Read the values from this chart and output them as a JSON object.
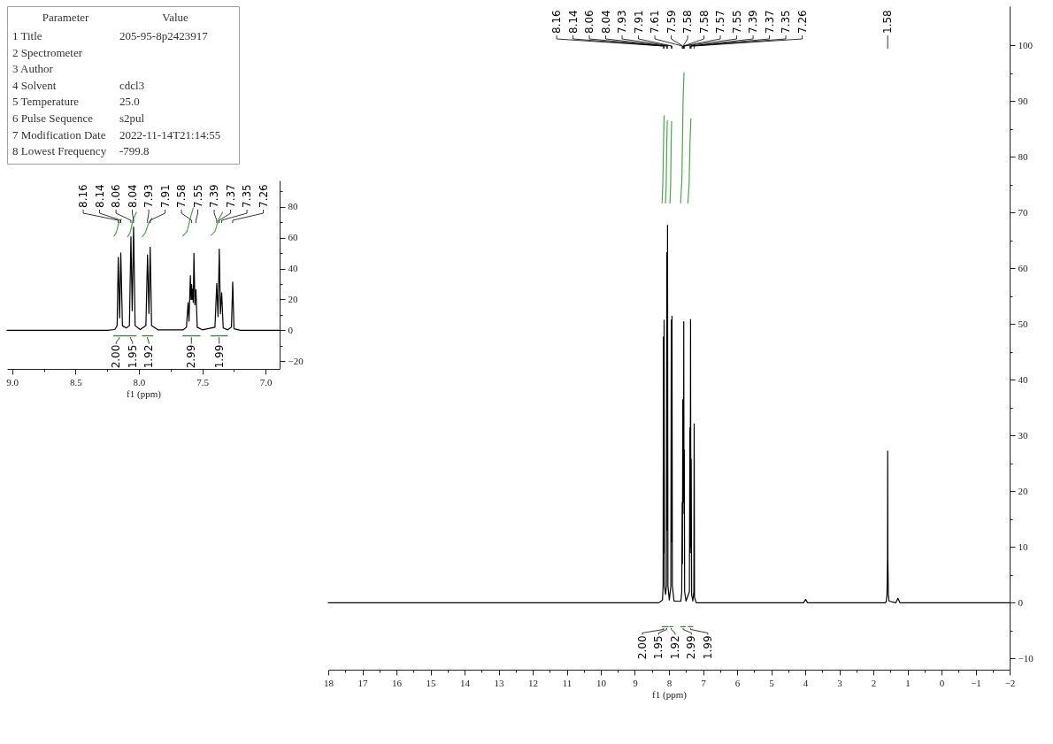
{
  "chart_data": [
    {
      "type": "other",
      "categories": [
        "Parameter",
        "1 Title",
        "2 Spectrometer",
        "3 Author",
        "4 Solvent",
        "5 Temperature",
        "6 Pulse Sequence",
        "7 Modification Date",
        "8 Lowest Frequency"
      ],
      "value_labels": [
        "Value",
        "205-95-8p2423917",
        null,
        null,
        "cdcl3",
        "25.0",
        "s2pul",
        "2022-11-14T21:14:55",
        "-799.8"
      ]
    },
    {
      "type": "line",
      "xlabel": "f1 (ppm)",
      "xlim": [
        9.04,
        6.89
      ],
      "xticks": [
        {
          "value": 9.0,
          "label": "9.0"
        },
        {
          "value": 8.75,
          "label": null
        },
        {
          "value": 8.5,
          "label": "8.5"
        },
        {
          "value": 8.25,
          "label": null
        },
        {
          "value": 8.0,
          "label": "8.0"
        },
        {
          "value": 7.75,
          "label": null
        },
        {
          "value": 7.5,
          "label": "7.5"
        },
        {
          "value": 7.25,
          "label": null
        },
        {
          "value": 7.0,
          "label": "7.0"
        }
      ],
      "ylim": [
        -25,
        97
      ],
      "yticks": [
        -20,
        {
          "value": -10,
          "label": null
        },
        0,
        {
          "value": 10,
          "label": null
        },
        20,
        {
          "value": 30,
          "label": null
        },
        40,
        {
          "value": 50,
          "label": null
        },
        60,
        {
          "value": 70,
          "label": null
        },
        80,
        {
          "value": 90,
          "label": null
        }
      ],
      "grid": false,
      "series": [
        {
          "color": "#000000",
          "x": [
            9.04,
            8.25,
            8.19,
            8.172,
            8.163,
            8.152,
            8.143,
            8.13,
            8.1,
            8.075,
            8.063,
            8.053,
            8.042,
            8.03,
            7.99,
            7.945,
            7.932,
            7.921,
            7.911,
            7.9,
            7.85,
            7.65,
            7.625,
            7.612,
            7.605,
            7.594,
            7.589,
            7.584,
            7.58,
            7.576,
            7.571,
            7.566,
            7.558,
            7.55,
            7.54,
            7.5,
            7.4,
            7.386,
            7.376,
            7.366,
            7.357,
            7.347,
            7.335,
            7.3,
            7.27,
            7.26,
            7.25,
            7.2,
            6.89
          ],
          "values": [
            0,
            0,
            0.5,
            3,
            47.3,
            8,
            50.1,
            3,
            1.5,
            3,
            60.6,
            12.6,
            66.9,
            3,
            0.5,
            3,
            48.8,
            10.9,
            53.9,
            3,
            0.3,
            0.3,
            2,
            17.9,
            5.9,
            35.4,
            20,
            29.7,
            20,
            26.7,
            18,
            49.9,
            16.5,
            26.3,
            2,
            0.3,
            2,
            30.3,
            8.8,
            52.6,
            10.7,
            24.4,
            1.5,
            0.3,
            2,
            31.2,
            1,
            0,
            0
          ]
        },
        {
          "color": "#4aa84a",
          "x": [
            8.197,
            8.18,
            8.16,
            8.139,
            8.11,
            8.09,
            8.07,
            8.045,
            8.02,
            8.0,
            7.973,
            7.95,
            7.925,
            7.898,
            7.8,
            7.653,
            7.62,
            7.59,
            7.571,
            7.5,
            7.43,
            7.4,
            7.37,
            7.34
          ],
          "values": [
            61,
            63,
            69,
            72,
            null,
            60.6,
            63,
            72,
            76.4,
            null,
            60.6,
            63,
            69,
            72.6,
            null,
            61.1,
            64,
            74,
            79.2,
            null,
            61.7,
            64,
            72,
            76.4
          ]
        },
        {
          "color": "#2f8f2f",
          "x": [
            8.2,
            8.11,
            8.109,
            8.108,
            8.022,
            8.0,
            7.973,
            7.891,
            7.8,
            7.653,
            7.518,
            7.47,
            7.431,
            7.302
          ],
          "values": [
            -3.6,
            -3.6,
            null,
            -3.6,
            -3.6,
            null,
            -3.6,
            -3.6,
            null,
            -3.6,
            -3.6,
            null,
            -3.6,
            -3.6
          ]
        }
      ],
      "annotations": [
        {
          "text": "8.16",
          "x": 8.163
        },
        {
          "text": "8.14",
          "x": 8.143
        },
        {
          "text": "8.06",
          "x": 8.063
        },
        {
          "text": "8.04",
          "x": 8.042
        },
        {
          "text": "7.93",
          "x": 7.932
        },
        {
          "text": "7.91",
          "x": 7.911
        },
        {
          "text": "7.58",
          "x": 7.584
        },
        {
          "text": "7.55",
          "x": 7.55
        },
        {
          "text": "7.39",
          "x": 7.386
        },
        {
          "text": "7.37",
          "x": 7.366
        },
        {
          "text": "7.35",
          "x": 7.347
        },
        {
          "text": "7.26",
          "x": 7.26
        },
        {
          "text": "2.00",
          "x": 8.155,
          "y": -3.6
        },
        {
          "text": "1.95",
          "x": 8.065,
          "y": -3.6
        },
        {
          "text": "1.92",
          "x": 7.932,
          "y": -3.6
        },
        {
          "text": "2.99",
          "x": 7.586,
          "y": -3.6
        },
        {
          "text": "1.99",
          "x": 7.367,
          "y": -3.6
        }
      ]
    },
    {
      "type": "line",
      "xlabel": "f1 (ppm)",
      "xlim": [
        18,
        -2
      ],
      "xticks": [
        18,
        {
          "value": 17.5,
          "label": null
        },
        17,
        {
          "value": 16.5,
          "label": null
        },
        16,
        {
          "value": 15.5,
          "label": null
        },
        15,
        {
          "value": 14.5,
          "label": null
        },
        14,
        {
          "value": 13.5,
          "label": null
        },
        13,
        {
          "value": 12.5,
          "label": null
        },
        12,
        {
          "value": 11.5,
          "label": null
        },
        11,
        {
          "value": 10.5,
          "label": null
        },
        10,
        {
          "value": 9.5,
          "label": null
        },
        9,
        {
          "value": 8.5,
          "label": null
        },
        8,
        {
          "value": 7.5,
          "label": null
        },
        7,
        {
          "value": 6.5,
          "label": null
        },
        6,
        {
          "value": 5.5,
          "label": null
        },
        5,
        {
          "value": 4.5,
          "label": null
        },
        4,
        {
          "value": 3.5,
          "label": null
        },
        3,
        {
          "value": 2.5,
          "label": null
        },
        2,
        {
          "value": 1.5,
          "label": null
        },
        1,
        {
          "value": 0.5,
          "label": null
        },
        0,
        {
          "value": -0.5,
          "label": null
        },
        -1,
        {
          "value": -1.5,
          "label": null
        },
        -2
      ],
      "ylim": [
        -12,
        107
      ],
      "yticks": [
        -10,
        {
          "value": -5,
          "label": null
        },
        0,
        {
          "value": 5,
          "label": null
        },
        10,
        {
          "value": 15,
          "label": null
        },
        20,
        {
          "value": 25,
          "label": null
        },
        30,
        {
          "value": 35,
          "label": null
        },
        40,
        {
          "value": 45,
          "label": null
        },
        50,
        {
          "value": 55,
          "label": null
        },
        60,
        {
          "value": 65,
          "label": null
        },
        70,
        {
          "value": 75,
          "label": null
        },
        80,
        {
          "value": 85,
          "label": null
        },
        90,
        {
          "value": 95,
          "label": null
        },
        100
      ],
      "grid": false,
      "series": [
        {
          "color": "#000000",
          "x": [
            18,
            8.3,
            8.19,
            8.172,
            8.163,
            8.152,
            8.143,
            8.13,
            8.1,
            8.075,
            8.063,
            8.053,
            8.042,
            8.03,
            7.99,
            7.945,
            7.932,
            7.921,
            7.911,
            7.9,
            7.85,
            7.65,
            7.625,
            7.612,
            7.605,
            7.594,
            7.589,
            7.584,
            7.58,
            7.576,
            7.571,
            7.566,
            7.558,
            7.55,
            7.54,
            7.5,
            7.4,
            7.386,
            7.376,
            7.366,
            7.357,
            7.347,
            7.335,
            7.3,
            7.27,
            7.26,
            7.25,
            7.2,
            4.05,
            3.99,
            3.93,
            1.65,
            1.62,
            1.6,
            1.585,
            1.58,
            1.575,
            1.56,
            1.54,
            1.34,
            1.28,
            1.22,
            -2
          ],
          "values": [
            0,
            0,
            0.5,
            3,
            47.7,
            9,
            50.7,
            3,
            1.5,
            3,
            62.8,
            13,
            67.7,
            3,
            0.5,
            3,
            50.7,
            11,
            51.4,
            3,
            0.3,
            0.3,
            2,
            18,
            7,
            36.4,
            21,
            30,
            20,
            28,
            18,
            50.4,
            16,
            27.4,
            2,
            0.3,
            2,
            31.4,
            9,
            50.8,
            10,
            25.8,
            1.5,
            0.3,
            2,
            32.1,
            1,
            0,
            0,
            0.6,
            0,
            0,
            0.3,
            1.5,
            8,
            27.2,
            8,
            1.5,
            0.3,
            0,
            0.8,
            0,
            0
          ]
        },
        {
          "color": "#4aa84a",
          "x": [
            8.203,
            8.18,
            8.158,
            8.142,
            8.12,
            8.103,
            8.08,
            8.062,
            8.049,
            8.0,
            7.97,
            7.95,
            7.935,
            7.923,
            7.8,
            7.659,
            7.62,
            7.585,
            7.558,
            7.5,
            7.443,
            7.41,
            7.38,
            7.357
          ],
          "values": [
            71.7,
            75,
            83,
            87.4,
            null,
            71.7,
            75,
            83,
            86.5,
            null,
            71.7,
            75,
            83,
            86.3,
            null,
            71.7,
            76,
            90,
            95.1,
            null,
            71.7,
            75,
            83,
            86.8
          ]
        },
        {
          "color": "#2f8f2f",
          "x": [
            8.2,
            8.11,
            8.109,
            8.108,
            8.022,
            8.0,
            7.973,
            7.891,
            7.8,
            7.653,
            7.518,
            7.47,
            7.431,
            7.302
          ],
          "values": [
            -4.3,
            -4.3,
            null,
            -4.3,
            -4.3,
            null,
            -4.3,
            -4.3,
            null,
            -4.3,
            -4.3,
            null,
            -4.3,
            -4.3
          ]
        }
      ],
      "annotations": [
        {
          "text": "8.16",
          "x": 8.163
        },
        {
          "text": "8.14",
          "x": 8.143
        },
        {
          "text": "8.06",
          "x": 8.063
        },
        {
          "text": "8.04",
          "x": 8.042
        },
        {
          "text": "7.93",
          "x": 7.932
        },
        {
          "text": "7.91",
          "x": 7.911
        },
        {
          "text": "7.61",
          "x": 7.612
        },
        {
          "text": "7.59",
          "x": 7.594
        },
        {
          "text": "7.58",
          "x": 7.584
        },
        {
          "text": "7.58",
          "x": 7.576
        },
        {
          "text": "7.57",
          "x": 7.566
        },
        {
          "text": "7.55",
          "x": 7.55
        },
        {
          "text": "7.39",
          "x": 7.386
        },
        {
          "text": "7.37",
          "x": 7.366
        },
        {
          "text": "7.35",
          "x": 7.347
        },
        {
          "text": "7.26",
          "x": 7.26
        },
        {
          "text": "1.58",
          "x": 1.58
        },
        {
          "text": "2.00",
          "x": 8.155,
          "y": -4.3
        },
        {
          "text": "1.95",
          "x": 8.065,
          "y": -4.3
        },
        {
          "text": "1.92",
          "x": 7.932,
          "y": -4.3
        },
        {
          "text": "2.99",
          "x": 7.586,
          "y": -4.3
        },
        {
          "text": "1.99",
          "x": 7.367,
          "y": -4.3
        }
      ]
    }
  ]
}
